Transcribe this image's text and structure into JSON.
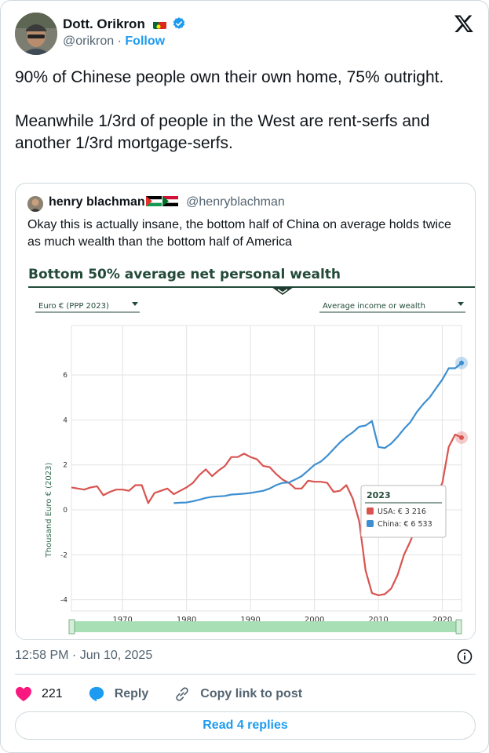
{
  "author": {
    "name": "Dott. Orikron",
    "handle": "@orikron",
    "separator": "·",
    "follow_label": "Follow"
  },
  "tweet_text": "90% of Chinese people own their own home, 75% outright.\n\nMeanwhile 1/3rd of people in the West are rent-serfs and another 1/3rd mortgage-serfs.",
  "quote": {
    "name": "henry blachman",
    "handle": "@henryblachman",
    "text": "Okay this is actually insane, the bottom half of China on average holds twice as much wealth than the bottom half of America"
  },
  "timestamp": "12:58 PM · Jun 10, 2025",
  "actions": {
    "likes": "221",
    "reply_label": "Reply",
    "copy_label": "Copy link to post",
    "read_replies_label": "Read 4 replies"
  },
  "colors": {
    "like": "#f91880",
    "reply": "#1d9bf0",
    "usa_line": "#d9534f",
    "china_line": "#3d8fd1",
    "chart_title": "#234a39",
    "slider": "#a8dfb5"
  },
  "chart_data": {
    "type": "line",
    "title": "Bottom 50% average net personal wealth",
    "dropdown_left": "Euro € (PPP 2023)",
    "dropdown_right": "Average income or wealth",
    "ylabel": "Thousand Euro € (2023)",
    "xlim": [
      1962,
      2023
    ],
    "ylim": [
      -4.5,
      8.2
    ],
    "x_ticks": [
      "1970",
      "1980",
      "1990",
      "2000",
      "2010",
      "2020"
    ],
    "y_ticks": [
      "6",
      "4",
      "2",
      "0",
      "-2",
      "-4"
    ],
    "series": [
      {
        "name": "USA",
        "points": [
          [
            1962,
            1.0
          ],
          [
            1963,
            0.95
          ],
          [
            1964,
            0.9
          ],
          [
            1965,
            1.0
          ],
          [
            1966,
            1.05
          ],
          [
            1967,
            0.65
          ],
          [
            1968,
            0.8
          ],
          [
            1969,
            0.9
          ],
          [
            1970,
            0.9
          ],
          [
            1971,
            0.85
          ],
          [
            1972,
            1.1
          ],
          [
            1973,
            1.1
          ],
          [
            1974,
            0.3
          ],
          [
            1975,
            0.75
          ],
          [
            1976,
            0.85
          ],
          [
            1977,
            0.95
          ],
          [
            1978,
            0.7
          ],
          [
            1979,
            0.85
          ],
          [
            1980,
            1.0
          ],
          [
            1981,
            1.2
          ],
          [
            1982,
            1.55
          ],
          [
            1983,
            1.8
          ],
          [
            1984,
            1.5
          ],
          [
            1985,
            1.75
          ],
          [
            1986,
            1.95
          ],
          [
            1987,
            2.35
          ],
          [
            1988,
            2.35
          ],
          [
            1989,
            2.5
          ],
          [
            1990,
            2.35
          ],
          [
            1991,
            2.25
          ],
          [
            1992,
            1.95
          ],
          [
            1993,
            1.9
          ],
          [
            1994,
            1.6
          ],
          [
            1995,
            1.35
          ],
          [
            1996,
            1.2
          ],
          [
            1997,
            0.95
          ],
          [
            1998,
            0.95
          ],
          [
            1999,
            1.3
          ],
          [
            2000,
            1.25
          ],
          [
            2001,
            1.25
          ],
          [
            2002,
            1.2
          ],
          [
            2003,
            0.8
          ],
          [
            2004,
            0.85
          ],
          [
            2005,
            1.1
          ],
          [
            2006,
            0.5
          ],
          [
            2007,
            -0.5
          ],
          [
            2008,
            -2.7
          ],
          [
            2009,
            -3.7
          ],
          [
            2010,
            -3.8
          ],
          [
            2011,
            -3.75
          ],
          [
            2012,
            -3.5
          ],
          [
            2013,
            -2.9
          ],
          [
            2014,
            -2.0
          ],
          [
            2015,
            -1.4
          ],
          [
            2016,
            -0.7
          ],
          [
            2017,
            -0.2
          ],
          [
            2018,
            0.3
          ],
          [
            2019,
            0.6
          ],
          [
            2020,
            1.2
          ],
          [
            2021,
            2.8
          ],
          [
            2022,
            3.35
          ],
          [
            2023,
            3.216
          ]
        ]
      },
      {
        "name": "China",
        "points": [
          [
            1978,
            0.3
          ],
          [
            1979,
            0.32
          ],
          [
            1980,
            0.33
          ],
          [
            1981,
            0.38
          ],
          [
            1982,
            0.45
          ],
          [
            1983,
            0.53
          ],
          [
            1984,
            0.58
          ],
          [
            1985,
            0.6
          ],
          [
            1986,
            0.62
          ],
          [
            1987,
            0.68
          ],
          [
            1988,
            0.7
          ],
          [
            1989,
            0.72
          ],
          [
            1990,
            0.75
          ],
          [
            1991,
            0.8
          ],
          [
            1992,
            0.85
          ],
          [
            1993,
            0.95
          ],
          [
            1994,
            1.1
          ],
          [
            1995,
            1.2
          ],
          [
            1996,
            1.22
          ],
          [
            1997,
            1.35
          ],
          [
            1998,
            1.5
          ],
          [
            1999,
            1.75
          ],
          [
            2000,
            2.0
          ],
          [
            2001,
            2.15
          ],
          [
            2002,
            2.4
          ],
          [
            2003,
            2.7
          ],
          [
            2004,
            3.0
          ],
          [
            2005,
            3.25
          ],
          [
            2006,
            3.45
          ],
          [
            2007,
            3.7
          ],
          [
            2008,
            3.75
          ],
          [
            2009,
            3.95
          ],
          [
            2010,
            2.8
          ],
          [
            2011,
            2.75
          ],
          [
            2012,
            2.95
          ],
          [
            2013,
            3.25
          ],
          [
            2014,
            3.6
          ],
          [
            2015,
            3.9
          ],
          [
            2016,
            4.35
          ],
          [
            2017,
            4.7
          ],
          [
            2018,
            5.0
          ],
          [
            2019,
            5.4
          ],
          [
            2020,
            5.8
          ],
          [
            2021,
            6.3
          ],
          [
            2022,
            6.3
          ],
          [
            2023,
            6.533
          ]
        ]
      }
    ],
    "tooltip": {
      "year": "2023",
      "rows": [
        "USA: € 3 216",
        "China: € 6 533"
      ]
    }
  }
}
